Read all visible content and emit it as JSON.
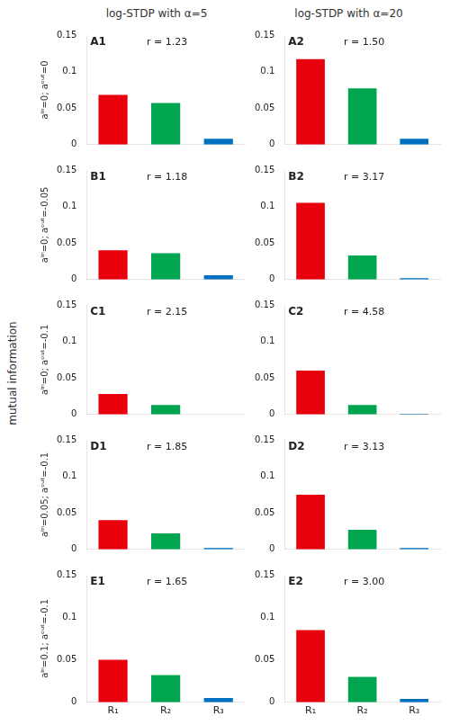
{
  "ylabel": "mutual information",
  "chart_data": [
    {
      "type": "bar",
      "title": "A1",
      "subtitle": "log-STDP with α=5",
      "ylabel": "aⁱⁿ=0; aᵒᵘᵗ=0",
      "annotations": [
        "r = 1.23"
      ],
      "categories": [
        null,
        null,
        null
      ],
      "values": [
        0.068,
        0.057,
        0.008
      ],
      "colors": [
        "#e8000d",
        "#00a550",
        "#0070c0"
      ],
      "ylim": [
        0,
        0.15
      ],
      "yticks": [
        0,
        0.05,
        0.1,
        0.15
      ],
      "grid": false
    },
    {
      "type": "bar",
      "title": "A2",
      "subtitle": "log-STDP with α=20",
      "annotations": [
        "r = 1.50"
      ],
      "categories": [
        null,
        null,
        null
      ],
      "values": [
        0.117,
        0.077,
        0.008
      ],
      "colors": [
        "#e8000d",
        "#00a550",
        "#0070c0"
      ],
      "ylim": [
        0,
        0.15
      ],
      "yticks": [
        0,
        0.05,
        0.1,
        0.15
      ],
      "grid": false
    },
    {
      "type": "bar",
      "title": "B1",
      "ylabel": "aⁱⁿ=0; aᵒᵘᵗ=-0.05",
      "annotations": [
        "r = 1.18"
      ],
      "categories": [
        null,
        null,
        null
      ],
      "values": [
        0.04,
        0.036,
        0.006
      ],
      "colors": [
        "#e8000d",
        "#00a550",
        "#0070c0"
      ],
      "ylim": [
        0,
        0.15
      ],
      "yticks": [
        0,
        0.05,
        0.1,
        0.15
      ],
      "grid": false
    },
    {
      "type": "bar",
      "title": "B2",
      "annotations": [
        "r = 3.17"
      ],
      "categories": [
        null,
        null,
        null
      ],
      "values": [
        0.105,
        0.033,
        0.002
      ],
      "colors": [
        "#e8000d",
        "#00a550",
        "#0070c0"
      ],
      "ylim": [
        0,
        0.15
      ],
      "yticks": [
        0,
        0.05,
        0.1,
        0.15
      ],
      "grid": false
    },
    {
      "type": "bar",
      "title": "C1",
      "ylabel": "aⁱⁿ=0; aᵒᵘᵗ=-0.1",
      "annotations": [
        "r = 2.15"
      ],
      "categories": [
        null,
        null,
        null
      ],
      "values": [
        0.028,
        0.013,
        0
      ],
      "colors": [
        "#e8000d",
        "#00a550",
        "#0070c0"
      ],
      "ylim": [
        0,
        0.15
      ],
      "yticks": [
        0,
        0.05,
        0.1,
        0.15
      ],
      "grid": false
    },
    {
      "type": "bar",
      "title": "C2",
      "annotations": [
        "r = 4.58"
      ],
      "categories": [
        null,
        null,
        null
      ],
      "values": [
        0.06,
        0.013,
        0.001
      ],
      "colors": [
        "#e8000d",
        "#00a550",
        "#0070c0"
      ],
      "ylim": [
        0,
        0.15
      ],
      "yticks": [
        0,
        0.05,
        0.1,
        0.15
      ],
      "grid": false
    },
    {
      "type": "bar",
      "title": "D1",
      "ylabel": "aⁱⁿ=0.05; aᵒᵘᵗ=-0.1",
      "annotations": [
        "r = 1.85"
      ],
      "categories": [
        null,
        null,
        null
      ],
      "values": [
        0.04,
        0.022,
        0.002
      ],
      "colors": [
        "#e8000d",
        "#00a550",
        "#0070c0"
      ],
      "ylim": [
        0,
        0.15
      ],
      "yticks": [
        0,
        0.05,
        0.1,
        0.15
      ],
      "grid": false
    },
    {
      "type": "bar",
      "title": "D2",
      "annotations": [
        "r = 3.13"
      ],
      "categories": [
        null,
        null,
        null
      ],
      "values": [
        0.075,
        0.027,
        0.002
      ],
      "colors": [
        "#e8000d",
        "#00a550",
        "#0070c0"
      ],
      "ylim": [
        0,
        0.15
      ],
      "yticks": [
        0,
        0.05,
        0.1,
        0.15
      ],
      "grid": false
    },
    {
      "type": "bar",
      "title": "E1",
      "ylabel": "aⁱⁿ=0.1; aᵒᵘᵗ=-0.1",
      "annotations": [
        "r = 1.65"
      ],
      "categories": [
        "R₁",
        "R₂",
        "R₃"
      ],
      "values": [
        0.05,
        0.032,
        0.005
      ],
      "colors": [
        "#e8000d",
        "#00a550",
        "#0070c0"
      ],
      "ylim": [
        0,
        0.15
      ],
      "yticks": [
        0,
        0.05,
        0.1,
        0.15
      ],
      "grid": false
    },
    {
      "type": "bar",
      "title": "E2",
      "annotations": [
        "r = 3.00"
      ],
      "categories": [
        "R₁",
        "R₂",
        "R₃"
      ],
      "values": [
        0.085,
        0.03,
        0.004
      ],
      "colors": [
        "#e8000d",
        "#00a550",
        "#0070c0"
      ],
      "ylim": [
        0,
        0.15
      ],
      "yticks": [
        0,
        0.05,
        0.1,
        0.15
      ],
      "grid": false
    }
  ]
}
